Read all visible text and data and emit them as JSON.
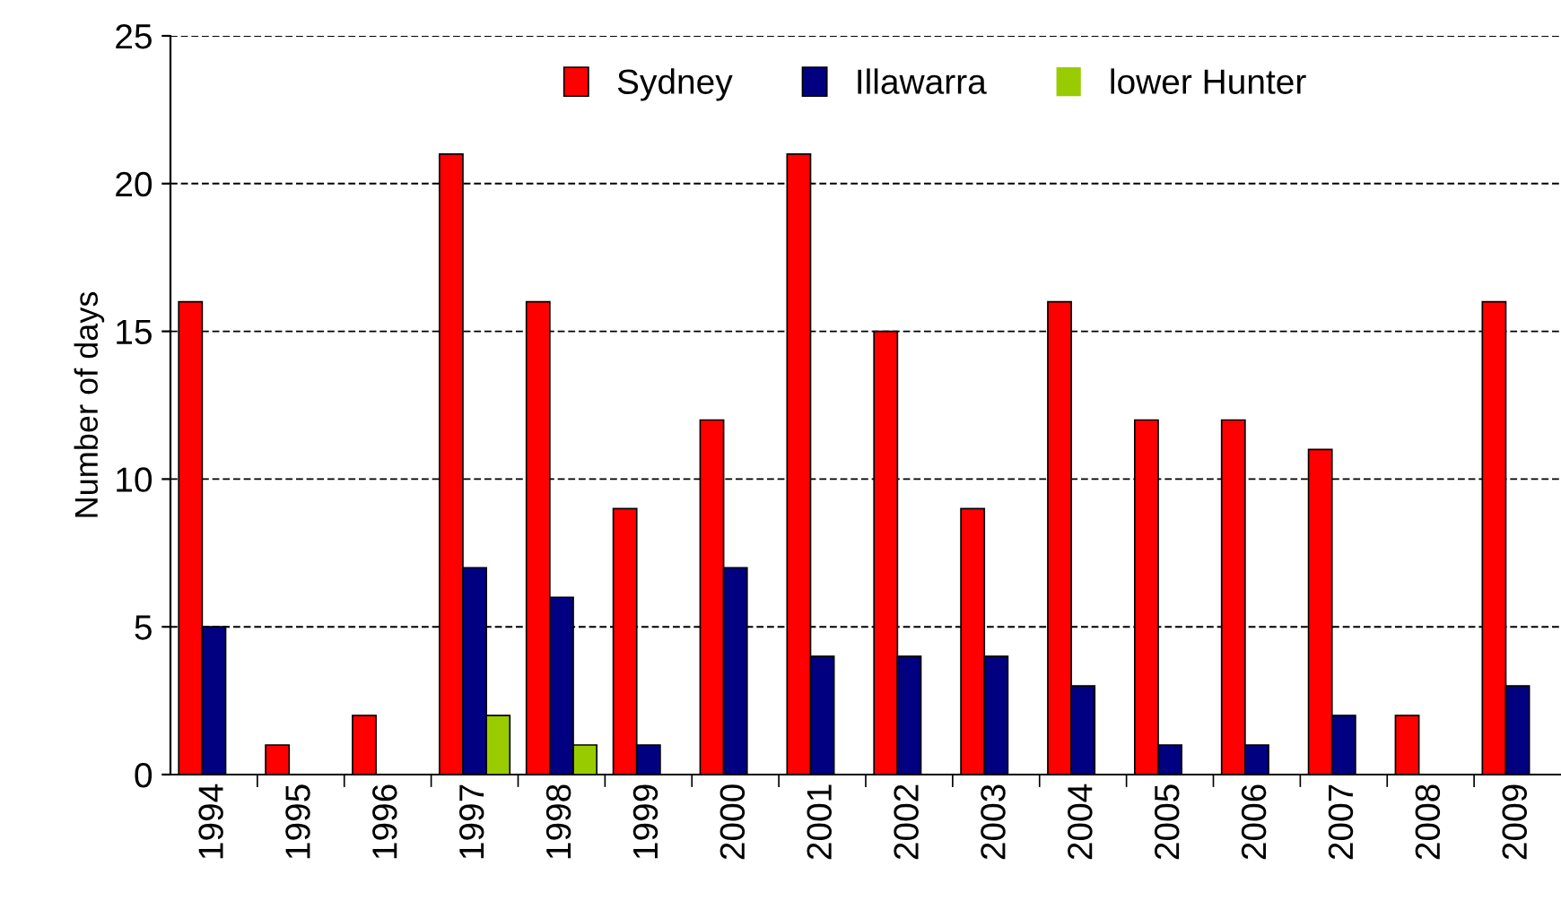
{
  "chart_data": {
    "type": "bar",
    "ylabel": "Number of days",
    "categories": [
      "1994",
      "1995",
      "1996",
      "1997",
      "1998",
      "1999",
      "2000",
      "2001",
      "2002",
      "2003",
      "2004",
      "2005",
      "2006",
      "2007",
      "2008",
      "2009"
    ],
    "series": [
      {
        "name": "Sydney",
        "color": "#ff0000",
        "values": [
          16,
          1,
          2,
          21,
          16,
          9,
          12,
          21,
          15,
          9,
          16,
          12,
          12,
          11,
          2,
          16
        ]
      },
      {
        "name": "Illawarra",
        "color": "#000080",
        "values": [
          5,
          0,
          0,
          7,
          6,
          1,
          7,
          4,
          4,
          4,
          3,
          1,
          1,
          2,
          0,
          3
        ]
      },
      {
        "name": "lower Hunter",
        "color": "#99cc00",
        "values": [
          0,
          0,
          0,
          2,
          1,
          0,
          0,
          0,
          0,
          0,
          0,
          0,
          0,
          0,
          0,
          0
        ]
      }
    ],
    "ylim": [
      0,
      25
    ],
    "yticks": [
      0,
      5,
      10,
      15,
      20,
      25
    ],
    "grid": "y",
    "legend": "top"
  }
}
